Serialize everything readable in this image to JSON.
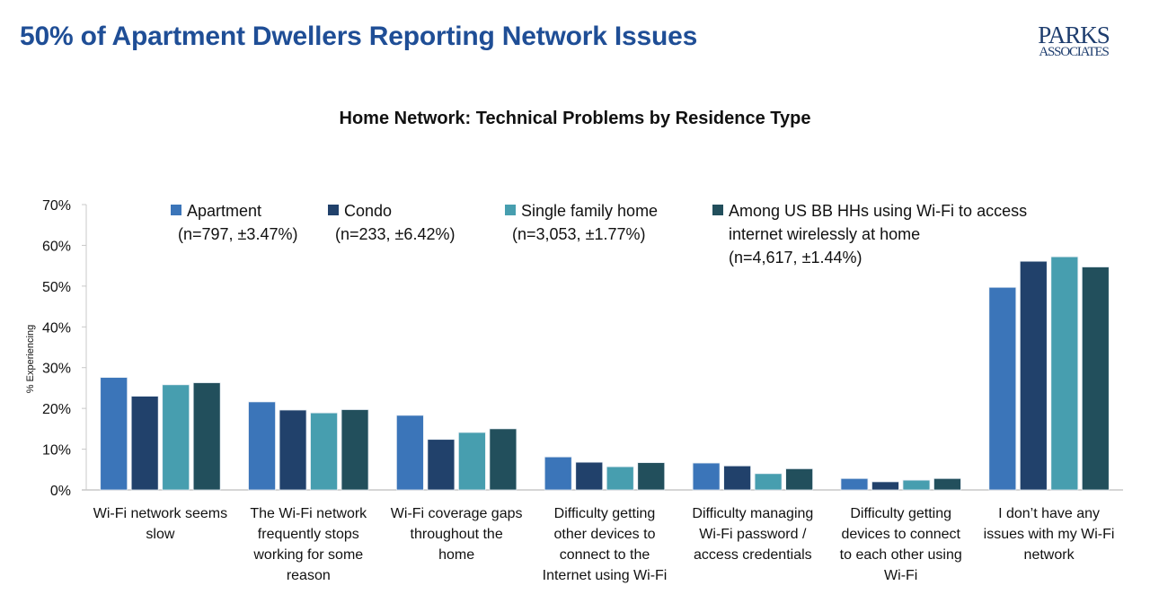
{
  "header": {
    "title": "50% of Apartment Dwellers Reporting Network Issues",
    "logo_line1": "PARKS",
    "logo_line2": "ASSOCIATES"
  },
  "colors": {
    "title": "#1f4e96",
    "apartment": "#3b75b9",
    "condo": "#21416b",
    "single_family": "#479eaf",
    "us_bb": "#224f5c"
  },
  "chart_data": {
    "type": "bar",
    "title": "Home Network: Technical Problems by Residence Type",
    "ylabel": "% Experiencing",
    "xlabel": "",
    "ylim": [
      0,
      70
    ],
    "yticks": [
      "0%",
      "10%",
      "20%",
      "30%",
      "40%",
      "50%",
      "60%",
      "70%"
    ],
    "grid": false,
    "legend_position": "top",
    "categories": [
      [
        "Wi-Fi network seems",
        "slow"
      ],
      [
        "The Wi-Fi network",
        "frequently stops",
        "working for some",
        "reason"
      ],
      [
        "Wi-Fi coverage gaps",
        "throughout the",
        "home"
      ],
      [
        "Difficulty getting",
        "other devices to",
        "connect to the",
        "Internet using Wi-Fi"
      ],
      [
        "Difficulty managing",
        "Wi-Fi password /",
        "access credentials"
      ],
      [
        "Difficulty getting",
        "devices to connect",
        "to each other using",
        "Wi-Fi"
      ],
      [
        "I don’t have any",
        "issues with my Wi-Fi",
        "network"
      ]
    ],
    "series": [
      {
        "name": [
          "Apartment",
          "(n=797, ±3.47%)"
        ],
        "color": "#3b75b9",
        "values": [
          27.6,
          21.6,
          18.3,
          8.1,
          6.6,
          2.8,
          49.7
        ]
      },
      {
        "name": [
          "Condo",
          "(n=233, ±6.42%)"
        ],
        "color": "#21416b",
        "values": [
          23.0,
          19.6,
          12.4,
          6.8,
          5.9,
          2.0,
          56.1
        ]
      },
      {
        "name": [
          "Single family home",
          "(n=3,053, ±1.77%)"
        ],
        "color": "#479eaf",
        "values": [
          25.8,
          18.9,
          14.1,
          5.7,
          4.0,
          2.4,
          57.2
        ]
      },
      {
        "name": [
          "Among US BB HHs using Wi-Fi to access",
          "internet wirelessly at home",
          "(n=4,617, ±1.44%)"
        ],
        "color": "#224f5c",
        "values": [
          26.3,
          19.7,
          15.0,
          6.7,
          5.2,
          2.8,
          54.7
        ]
      }
    ]
  }
}
